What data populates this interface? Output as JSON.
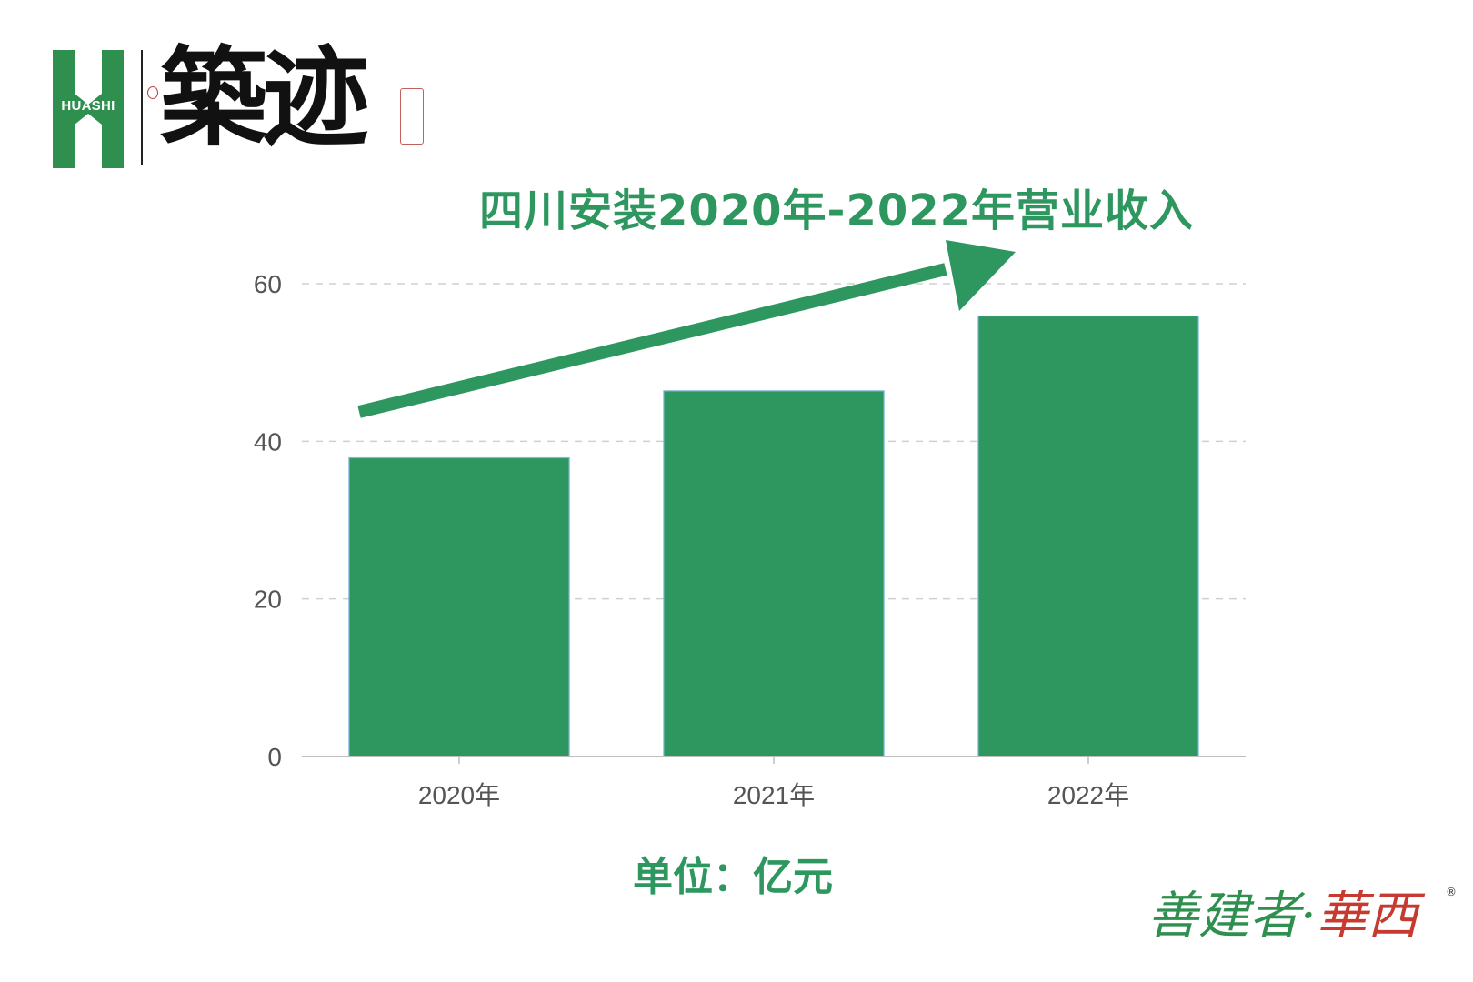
{
  "logo": {
    "mark_text": "HUASHI",
    "calligraphy": "築迹"
  },
  "title": "四川安装2020年-2022年营业收入",
  "unit_label": "单位：亿元",
  "brand": {
    "part1": "善建者·",
    "part2": "華西",
    "registered": "®"
  },
  "colors": {
    "bar": "#2e9760",
    "bar_outline": "#7fb8d8",
    "arrow": "#2e9760",
    "title": "#2e9760",
    "grid": "#d0d0d0",
    "axis": "#bdbdbd"
  },
  "chart_data": {
    "type": "bar",
    "categories": [
      "2020年",
      "2021年",
      "2022年"
    ],
    "values": [
      37.9,
      46.4,
      55.9
    ],
    "ylim": [
      0,
      60
    ],
    "yticks": [
      0,
      20,
      40,
      60
    ],
    "grid": "dashed-horizontal",
    "trend_arrow": true
  }
}
